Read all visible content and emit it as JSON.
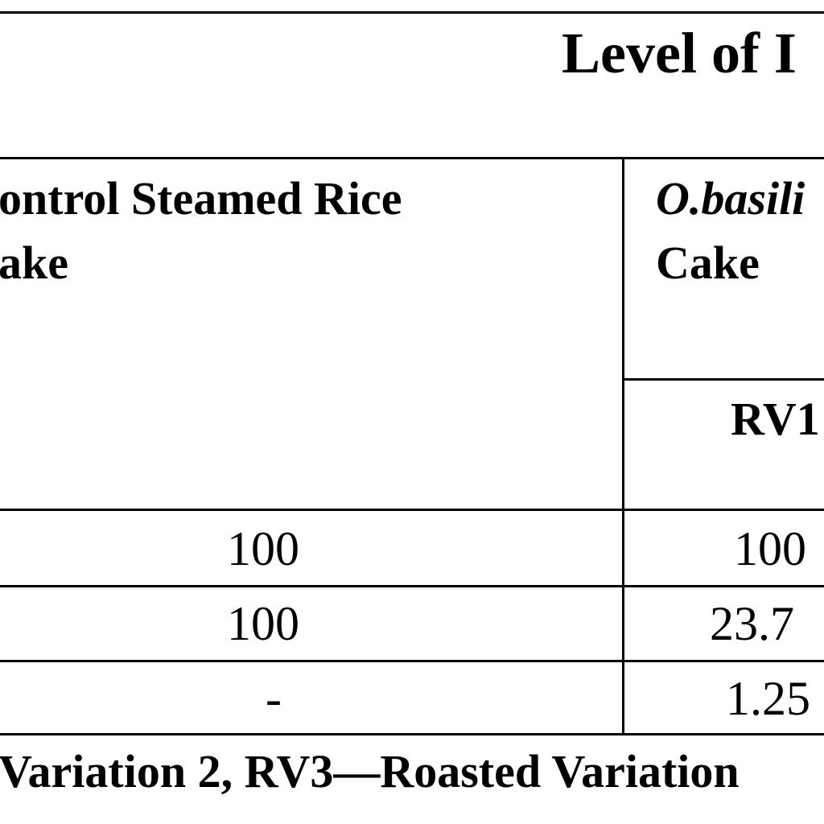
{
  "table": {
    "top_header": "Level of I",
    "col_control_line1": "ontrol Steamed Rice",
    "col_control_line2": "ake",
    "col_obasilicum_line1": "O.basili",
    "col_obasilicum_line2": "Cake",
    "sub_header_rv1": "RV1",
    "rows": [
      {
        "control": "100",
        "rv1": "100"
      },
      {
        "control": "100",
        "rv1": "23.7"
      },
      {
        "control": "-",
        "rv1": "1.25"
      }
    ]
  },
  "footnote": "Variation 2, RV3—Roasted Variation"
}
